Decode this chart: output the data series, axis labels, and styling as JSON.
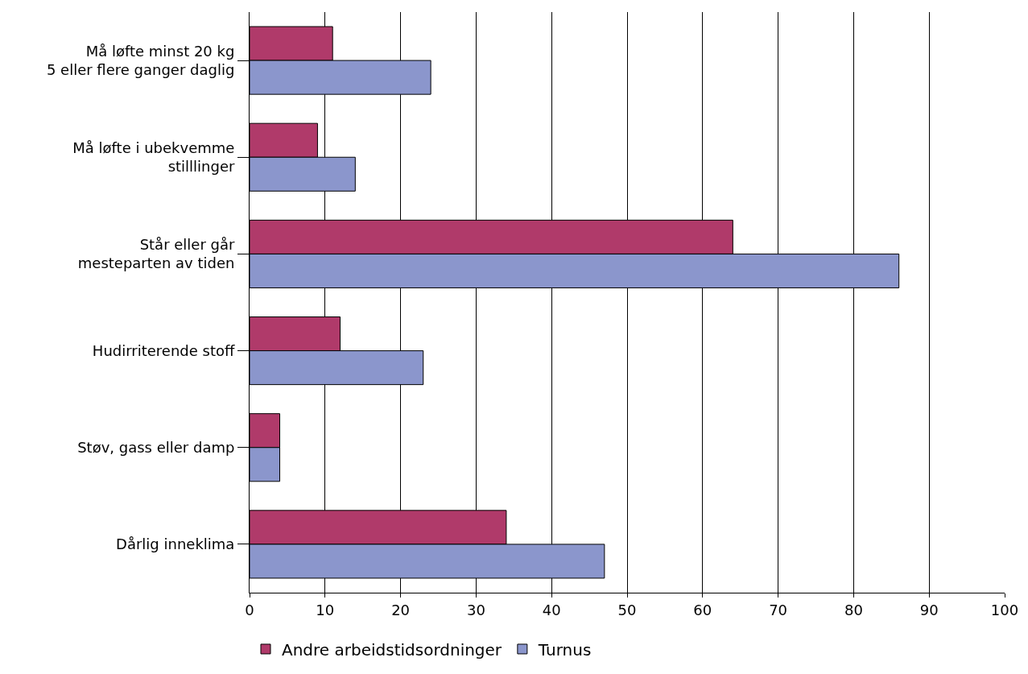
{
  "chart_data": {
    "type": "bar",
    "orientation": "horizontal",
    "categories": [
      "Må løfte minst 20 kg\n5 eller flere ganger daglig",
      "Må løfte i ubekvemme\nstilllinger",
      "Står eller går\nmesteparten av tiden",
      "Hudirriterende stoff",
      "Støv, gass eller damp",
      "Dårlig inneklima"
    ],
    "series": [
      {
        "name": "Andre arbeidstidsordninger",
        "color": "#b03a6a",
        "values": [
          11,
          9,
          64,
          12,
          4,
          34
        ]
      },
      {
        "name": "Turnus",
        "color": "#8b96cc",
        "values": [
          24,
          14,
          86,
          23,
          4,
          47
        ]
      }
    ],
    "xlim": [
      0,
      100
    ],
    "xticks": [
      0,
      10,
      20,
      30,
      40,
      50,
      60,
      70,
      80,
      90,
      100
    ],
    "grid": "x",
    "legend": "bottom"
  }
}
